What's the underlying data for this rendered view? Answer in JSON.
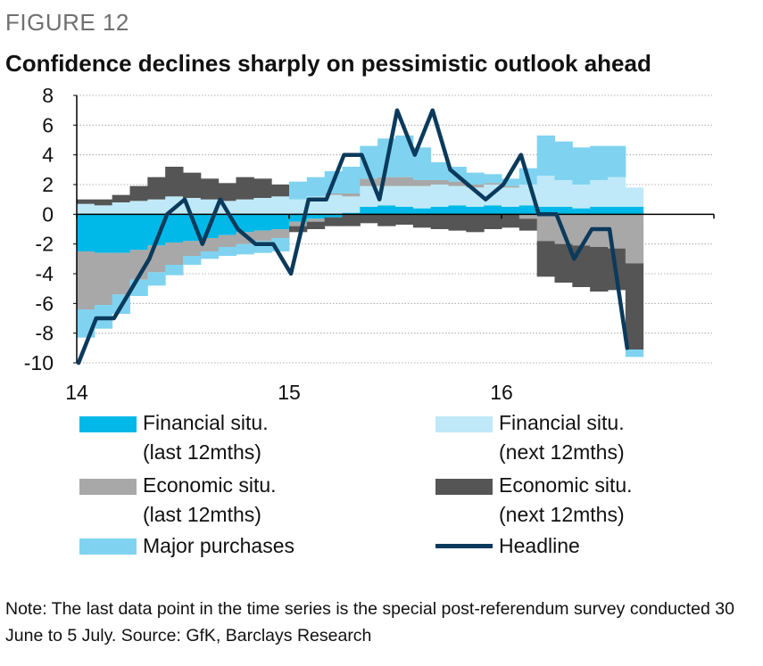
{
  "figure_label": "FIGURE 12",
  "title": "Confidence declines sharply on pessimistic outlook ahead",
  "note": "Note: The last data point in the time series is the special post-referendum survey conducted 30 June to 5 July. Source: GfK, Barclays Research",
  "colors": {
    "financial_last": "#00b9e8",
    "financial_next": "#bfe9f8",
    "economic_last": "#a8a8a8",
    "economic_next": "#555555",
    "major_purchases": "#7fd3f0",
    "headline": "#0b3a5c"
  },
  "legend": [
    {
      "series": "financial_last",
      "line1": "Financial situ.",
      "line2": "(last 12mths)"
    },
    {
      "series": "financial_next",
      "line1": "Financial situ.",
      "line2": "(next 12mths)"
    },
    {
      "series": "economic_last",
      "line1": "Economic situ.",
      "line2": "(last 12mths)"
    },
    {
      "series": "economic_next",
      "line1": "Economic situ.",
      "line2": "(next 12mths)"
    },
    {
      "series": "major_purchases",
      "line1": "Major purchases",
      "line2": ""
    },
    {
      "series": "headline",
      "line1": "Headline",
      "line2": ""
    }
  ],
  "chart_data": {
    "type": "bar",
    "stacked": true,
    "title": "Confidence declines sharply on pessimistic outlook ahead",
    "xlabel": "",
    "ylabel": "",
    "ylim": [
      -10,
      8
    ],
    "yticks": [
      8,
      6,
      4,
      2,
      0,
      -2,
      -4,
      -6,
      -8,
      -10
    ],
    "xticks": [
      {
        "label": "14",
        "x": 0
      },
      {
        "label": "15",
        "x": 12
      },
      {
        "label": "16",
        "x": 24
      }
    ],
    "xlim": [
      0,
      36
    ],
    "grid": true,
    "x": [
      0,
      1,
      2,
      3,
      4,
      5,
      6,
      7,
      8,
      9,
      10,
      11,
      12,
      13,
      14,
      15,
      16,
      17,
      18,
      19,
      20,
      21,
      22,
      23,
      24,
      25,
      26,
      27,
      28,
      29,
      30,
      31
    ],
    "series": [
      {
        "name": "Financial situ. (last 12mths)",
        "key": "financial_last",
        "values": [
          -2.5,
          -2.6,
          -2.6,
          -2.4,
          -2.1,
          -1.9,
          -1.8,
          -1.6,
          -1.4,
          -1.2,
          -1.1,
          -1.0,
          -0.5,
          -0.3,
          -0.2,
          0.1,
          0.5,
          0.6,
          0.5,
          0.4,
          0.5,
          0.6,
          0.5,
          0.6,
          0.5,
          0.6,
          0.5,
          0.5,
          0.4,
          0.5,
          0.5,
          0.5
        ]
      },
      {
        "name": "Financial situ. (next 12mths)",
        "key": "financial_next",
        "values": [
          0.7,
          0.6,
          0.8,
          0.9,
          1.0,
          1.2,
          1.1,
          1.0,
          0.9,
          1.0,
          1.1,
          1.2,
          1.0,
          1.2,
          1.3,
          1.1,
          1.4,
          1.3,
          1.4,
          1.5,
          1.5,
          1.3,
          1.3,
          1.4,
          1.3,
          1.4,
          2.1,
          1.8,
          1.6,
          1.8,
          2.0,
          1.3
        ]
      },
      {
        "name": "Economic situ. (last 12mths)",
        "key": "economic_last",
        "values": [
          -3.9,
          -3.5,
          -2.8,
          -2.0,
          -1.8,
          -1.5,
          -1.0,
          -0.9,
          -0.8,
          -0.8,
          -0.7,
          -0.6,
          -0.3,
          -0.2,
          0.1,
          0.2,
          0.5,
          0.6,
          0.6,
          0.4,
          0.3,
          0.3,
          0.2,
          0.1,
          0.1,
          -0.3,
          -1.8,
          -2.0,
          -2.1,
          -2.2,
          -2.3,
          -3.3
        ]
      },
      {
        "name": "Economic situ. (next 12mths)",
        "key": "economic_next",
        "values": [
          0.3,
          0.4,
          0.5,
          1.0,
          1.5,
          2.0,
          1.7,
          1.4,
          1.2,
          1.5,
          1.3,
          0.8,
          -0.4,
          -0.5,
          -0.6,
          -0.8,
          -0.6,
          -0.8,
          -0.7,
          -0.9,
          -1.0,
          -1.1,
          -1.2,
          -1.0,
          -0.9,
          -0.8,
          -2.4,
          -2.6,
          -2.8,
          -3.0,
          -2.8,
          -5.8
        ]
      },
      {
        "name": "Major purchases",
        "key": "major_purchases",
        "values": [
          -1.9,
          -1.6,
          -1.3,
          -1.1,
          -0.9,
          -0.7,
          -0.6,
          -0.5,
          -0.6,
          -0.7,
          -0.8,
          -0.9,
          1.2,
          1.3,
          1.5,
          1.8,
          2.2,
          2.6,
          2.8,
          2.2,
          1.2,
          1.0,
          0.8,
          0.6,
          0.5,
          1.1,
          2.7,
          2.6,
          2.5,
          2.3,
          2.1,
          -0.5
        ]
      }
    ],
    "line": {
      "name": "Headline",
      "key": "headline",
      "values": [
        -10,
        -7,
        -7,
        -5,
        -3,
        0,
        1,
        -2,
        1,
        -1,
        -2,
        -2,
        -4,
        1,
        1,
        4,
        4,
        1,
        7,
        4,
        7,
        3,
        2,
        1,
        2,
        4,
        0,
        0,
        -3,
        -1,
        -1,
        -9
      ]
    }
  }
}
